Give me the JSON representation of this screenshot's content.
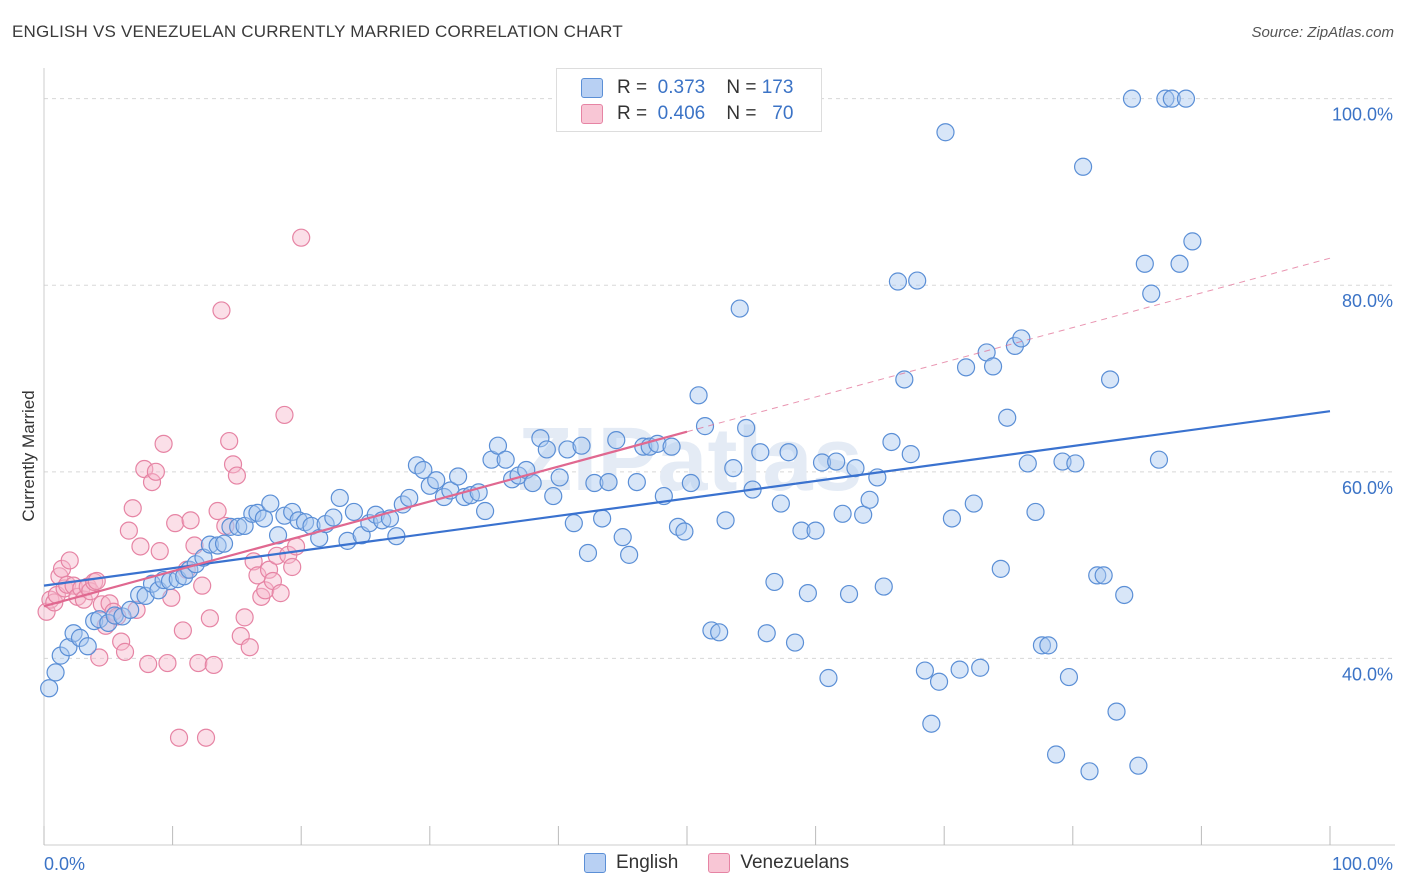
{
  "title": "ENGLISH VS VENEZUELAN CURRENTLY MARRIED CORRELATION CHART",
  "source": "Source: ZipAtlas.com",
  "legend": {
    "rows": [
      {
        "r_label": "R =",
        "r_value": "0.373",
        "n_label": "N =",
        "n_value": "173"
      },
      {
        "r_label": "R =",
        "r_value": "0.406",
        "n_label": "N =",
        "n_value": "70"
      }
    ]
  },
  "bottom_legend": [
    "English",
    "Venezuelans"
  ],
  "colors": {
    "english_fill": "#a9c8f0",
    "english_stroke": "#5b8fd6",
    "english_line": "#3a72cf",
    "venez_fill": "#f6b9cc",
    "venez_stroke": "#e684a4",
    "venez_line": "#e06890",
    "tick_text": "#3b73c6",
    "grid": "#d8d8d8"
  },
  "chart_data": {
    "type": "scatter",
    "title": "ENGLISH VS VENEZUELAN CURRENTLY MARRIED CORRELATION CHART",
    "xlabel": "",
    "ylabel": "Currently Married",
    "xlim": [
      0,
      100
    ],
    "ylim": [
      20,
      102
    ],
    "x_tick_labels": [
      "0.0%",
      "100.0%"
    ],
    "y_ticks": [
      40,
      60,
      80,
      100
    ],
    "y_tick_labels": [
      "40.0%",
      "60.0%",
      "80.0%",
      "100.0%"
    ],
    "grid": true,
    "legend_position": "top-center",
    "watermark": "ZIPatlas",
    "series": [
      {
        "name": "English",
        "R": 0.373,
        "N": 173,
        "trend": {
          "x0": 0,
          "y0": 47.8,
          "x1": 100,
          "y1": 66.5
        },
        "points": [
          [
            0.4,
            36.8
          ],
          [
            0.9,
            38.5
          ],
          [
            1.3,
            40.3
          ],
          [
            1.9,
            41.2
          ],
          [
            2.3,
            42.7
          ],
          [
            2.8,
            42.2
          ],
          [
            3.4,
            41.3
          ],
          [
            3.9,
            44.0
          ],
          [
            4.3,
            44.2
          ],
          [
            5.0,
            43.8
          ],
          [
            5.5,
            44.6
          ],
          [
            6.1,
            44.5
          ],
          [
            6.7,
            45.2
          ],
          [
            7.4,
            46.8
          ],
          [
            7.9,
            46.7
          ],
          [
            8.4,
            48.0
          ],
          [
            8.9,
            47.3
          ],
          [
            9.3,
            48.4
          ],
          [
            9.8,
            48.3
          ],
          [
            10.4,
            48.5
          ],
          [
            10.9,
            48.8
          ],
          [
            11.3,
            49.5
          ],
          [
            11.8,
            50.1
          ],
          [
            12.4,
            50.8
          ],
          [
            12.9,
            52.2
          ],
          [
            13.5,
            52.1
          ],
          [
            14.0,
            52.3
          ],
          [
            14.5,
            54.1
          ],
          [
            15.1,
            54.1
          ],
          [
            15.6,
            54.2
          ],
          [
            16.2,
            55.5
          ],
          [
            16.6,
            55.6
          ],
          [
            17.1,
            55.0
          ],
          [
            17.6,
            56.6
          ],
          [
            18.2,
            53.2
          ],
          [
            18.7,
            55.3
          ],
          [
            19.3,
            55.7
          ],
          [
            19.8,
            54.8
          ],
          [
            20.3,
            54.6
          ],
          [
            20.8,
            54.2
          ],
          [
            21.4,
            52.9
          ],
          [
            21.9,
            54.4
          ],
          [
            22.5,
            55.1
          ],
          [
            23.0,
            57.2
          ],
          [
            23.6,
            52.6
          ],
          [
            24.1,
            55.7
          ],
          [
            24.7,
            53.2
          ],
          [
            25.3,
            54.5
          ],
          [
            25.8,
            55.4
          ],
          [
            26.3,
            54.8
          ],
          [
            26.9,
            55.0
          ],
          [
            27.4,
            53.1
          ],
          [
            27.9,
            56.5
          ],
          [
            28.4,
            57.2
          ],
          [
            29.0,
            60.7
          ],
          [
            29.5,
            60.2
          ],
          [
            30.0,
            58.5
          ],
          [
            30.5,
            59.1
          ],
          [
            31.1,
            57.3
          ],
          [
            31.6,
            58.0
          ],
          [
            32.2,
            59.5
          ],
          [
            32.7,
            57.3
          ],
          [
            33.2,
            57.5
          ],
          [
            33.8,
            57.8
          ],
          [
            34.3,
            55.8
          ],
          [
            34.8,
            61.3
          ],
          [
            35.3,
            62.8
          ],
          [
            35.9,
            61.3
          ],
          [
            36.4,
            59.2
          ],
          [
            36.9,
            59.6
          ],
          [
            37.5,
            60.2
          ],
          [
            38.0,
            58.8
          ],
          [
            38.6,
            63.6
          ],
          [
            39.1,
            62.4
          ],
          [
            39.6,
            57.4
          ],
          [
            40.1,
            59.4
          ],
          [
            40.7,
            62.4
          ],
          [
            41.2,
            54.5
          ],
          [
            41.8,
            62.8
          ],
          [
            42.3,
            51.3
          ],
          [
            42.8,
            58.8
          ],
          [
            43.4,
            55.0
          ],
          [
            43.9,
            58.9
          ],
          [
            44.5,
            63.4
          ],
          [
            45.0,
            53.0
          ],
          [
            45.5,
            51.1
          ],
          [
            46.1,
            58.9
          ],
          [
            46.6,
            62.7
          ],
          [
            47.1,
            62.7
          ],
          [
            47.7,
            63.0
          ],
          [
            48.2,
            57.4
          ],
          [
            48.8,
            62.7
          ],
          [
            49.3,
            54.1
          ],
          [
            49.8,
            53.6
          ],
          [
            50.3,
            58.8
          ],
          [
            50.9,
            68.2
          ],
          [
            51.4,
            64.9
          ],
          [
            51.9,
            43.0
          ],
          [
            52.5,
            42.8
          ],
          [
            53.0,
            54.8
          ],
          [
            53.6,
            60.4
          ],
          [
            54.1,
            77.5
          ],
          [
            54.6,
            64.7
          ],
          [
            55.1,
            58.1
          ],
          [
            55.7,
            62.1
          ],
          [
            56.2,
            42.7
          ],
          [
            56.8,
            48.2
          ],
          [
            57.3,
            56.6
          ],
          [
            57.9,
            62.1
          ],
          [
            58.4,
            41.7
          ],
          [
            58.9,
            53.7
          ],
          [
            59.4,
            47.0
          ],
          [
            60.0,
            53.7
          ],
          [
            60.5,
            61.0
          ],
          [
            61.0,
            37.9
          ],
          [
            61.6,
            61.1
          ],
          [
            62.1,
            55.5
          ],
          [
            62.6,
            46.9
          ],
          [
            63.1,
            60.4
          ],
          [
            63.7,
            55.4
          ],
          [
            64.2,
            57.0
          ],
          [
            64.8,
            59.4
          ],
          [
            65.3,
            47.7
          ],
          [
            65.9,
            63.2
          ],
          [
            66.4,
            80.4
          ],
          [
            66.9,
            69.9
          ],
          [
            67.4,
            61.9
          ],
          [
            67.9,
            80.5
          ],
          [
            68.5,
            38.7
          ],
          [
            69.0,
            33.0
          ],
          [
            69.6,
            37.5
          ],
          [
            70.1,
            96.4
          ],
          [
            70.6,
            55.0
          ],
          [
            71.2,
            38.8
          ],
          [
            71.7,
            71.2
          ],
          [
            72.3,
            56.6
          ],
          [
            72.8,
            39.0
          ],
          [
            73.3,
            72.8
          ],
          [
            73.8,
            71.3
          ],
          [
            74.4,
            49.6
          ],
          [
            74.9,
            65.8
          ],
          [
            75.5,
            73.5
          ],
          [
            76.0,
            74.3
          ],
          [
            76.5,
            60.9
          ],
          [
            77.1,
            55.7
          ],
          [
            77.6,
            41.4
          ],
          [
            78.1,
            41.4
          ],
          [
            78.7,
            29.7
          ],
          [
            79.2,
            61.1
          ],
          [
            79.7,
            38.0
          ],
          [
            80.2,
            60.9
          ],
          [
            80.8,
            92.7
          ],
          [
            81.3,
            27.9
          ],
          [
            81.9,
            48.9
          ],
          [
            82.4,
            48.9
          ],
          [
            82.9,
            69.9
          ],
          [
            83.4,
            34.3
          ],
          [
            84.0,
            46.8
          ],
          [
            84.6,
            100.0
          ],
          [
            85.1,
            28.5
          ],
          [
            85.6,
            82.3
          ],
          [
            86.1,
            79.1
          ],
          [
            86.7,
            61.3
          ],
          [
            87.2,
            100.0
          ],
          [
            87.7,
            100.0
          ],
          [
            88.3,
            82.3
          ],
          [
            88.8,
            100.0
          ],
          [
            89.3,
            84.7
          ]
        ]
      },
      {
        "name": "Venezuelans",
        "R": 0.406,
        "N": 70,
        "trend": {
          "x0": 0,
          "y0": 45.6,
          "x1": 50,
          "y1": 64.3
        },
        "trend_extension": {
          "x0": 50,
          "y0": 64.3,
          "x1": 100,
          "y1": 82.9
        },
        "points": [
          [
            0.2,
            45.0
          ],
          [
            0.5,
            46.3
          ],
          [
            0.8,
            46.0
          ],
          [
            1.0,
            46.8
          ],
          [
            1.2,
            48.8
          ],
          [
            1.4,
            49.6
          ],
          [
            1.6,
            47.5
          ],
          [
            1.8,
            47.9
          ],
          [
            2.0,
            50.5
          ],
          [
            2.3,
            47.8
          ],
          [
            2.6,
            46.6
          ],
          [
            2.9,
            47.5
          ],
          [
            3.1,
            46.3
          ],
          [
            3.4,
            47.7
          ],
          [
            3.6,
            47.2
          ],
          [
            3.9,
            48.2
          ],
          [
            4.1,
            48.3
          ],
          [
            4.3,
            40.1
          ],
          [
            4.5,
            45.8
          ],
          [
            4.8,
            43.5
          ],
          [
            5.1,
            45.9
          ],
          [
            5.4,
            45.0
          ],
          [
            5.7,
            44.5
          ],
          [
            6.0,
            41.8
          ],
          [
            6.3,
            40.7
          ],
          [
            6.6,
            53.7
          ],
          [
            6.9,
            56.1
          ],
          [
            7.2,
            45.2
          ],
          [
            7.5,
            52.0
          ],
          [
            7.8,
            60.3
          ],
          [
            8.1,
            39.4
          ],
          [
            8.4,
            58.9
          ],
          [
            8.7,
            60.0
          ],
          [
            9.0,
            51.5
          ],
          [
            9.3,
            63.0
          ],
          [
            9.6,
            39.5
          ],
          [
            9.9,
            46.5
          ],
          [
            10.2,
            54.5
          ],
          [
            10.5,
            31.5
          ],
          [
            10.8,
            43.0
          ],
          [
            11.1,
            49.5
          ],
          [
            11.4,
            54.8
          ],
          [
            11.7,
            52.1
          ],
          [
            12.0,
            39.5
          ],
          [
            12.3,
            47.8
          ],
          [
            12.6,
            31.5
          ],
          [
            12.9,
            44.3
          ],
          [
            13.2,
            39.3
          ],
          [
            13.5,
            55.8
          ],
          [
            13.8,
            77.3
          ],
          [
            14.1,
            54.2
          ],
          [
            14.4,
            63.3
          ],
          [
            14.7,
            60.8
          ],
          [
            15.0,
            59.6
          ],
          [
            15.3,
            42.4
          ],
          [
            15.6,
            44.4
          ],
          [
            16.0,
            41.2
          ],
          [
            16.3,
            50.4
          ],
          [
            16.6,
            48.9
          ],
          [
            16.9,
            46.6
          ],
          [
            17.2,
            47.3
          ],
          [
            17.5,
            49.5
          ],
          [
            17.8,
            48.3
          ],
          [
            18.1,
            51.0
          ],
          [
            18.4,
            47.0
          ],
          [
            18.7,
            66.1
          ],
          [
            19.0,
            51.1
          ],
          [
            19.3,
            49.8
          ],
          [
            19.6,
            52.0
          ],
          [
            20.0,
            85.1
          ]
        ]
      }
    ]
  }
}
